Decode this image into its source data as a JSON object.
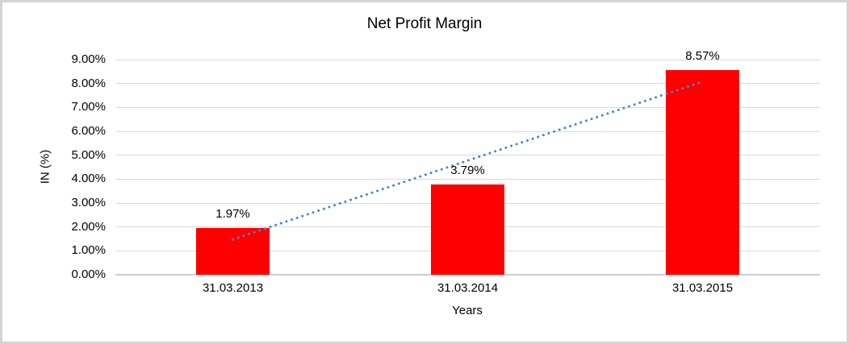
{
  "chart_data": {
    "type": "bar",
    "title": "Net Profit Margin",
    "xlabel": "Years",
    "ylabel": "IN (%)",
    "categories": [
      "31.03.2013",
      "31.03.2014",
      "31.03.2015"
    ],
    "values": [
      1.97,
      3.79,
      8.57
    ],
    "data_labels": [
      "1.97%",
      "3.79%",
      "8.57%"
    ],
    "ylim": [
      0,
      9
    ],
    "ytick_step": 1,
    "ytick_labels": [
      "0.00%",
      "1.00%",
      "2.00%",
      "3.00%",
      "4.00%",
      "5.00%",
      "6.00%",
      "7.00%",
      "8.00%",
      "9.00%"
    ],
    "grid": true,
    "legend": "none",
    "bar_color": "#ff0000",
    "trendline": {
      "type": "linear",
      "style": "dotted",
      "color": "#4a86c8"
    }
  },
  "colors": {
    "background": "#ffffff",
    "frame_border": "#d4d4d4",
    "gridline": "#d9d9d9",
    "axis_line": "#cccccc",
    "text": "#000000"
  }
}
